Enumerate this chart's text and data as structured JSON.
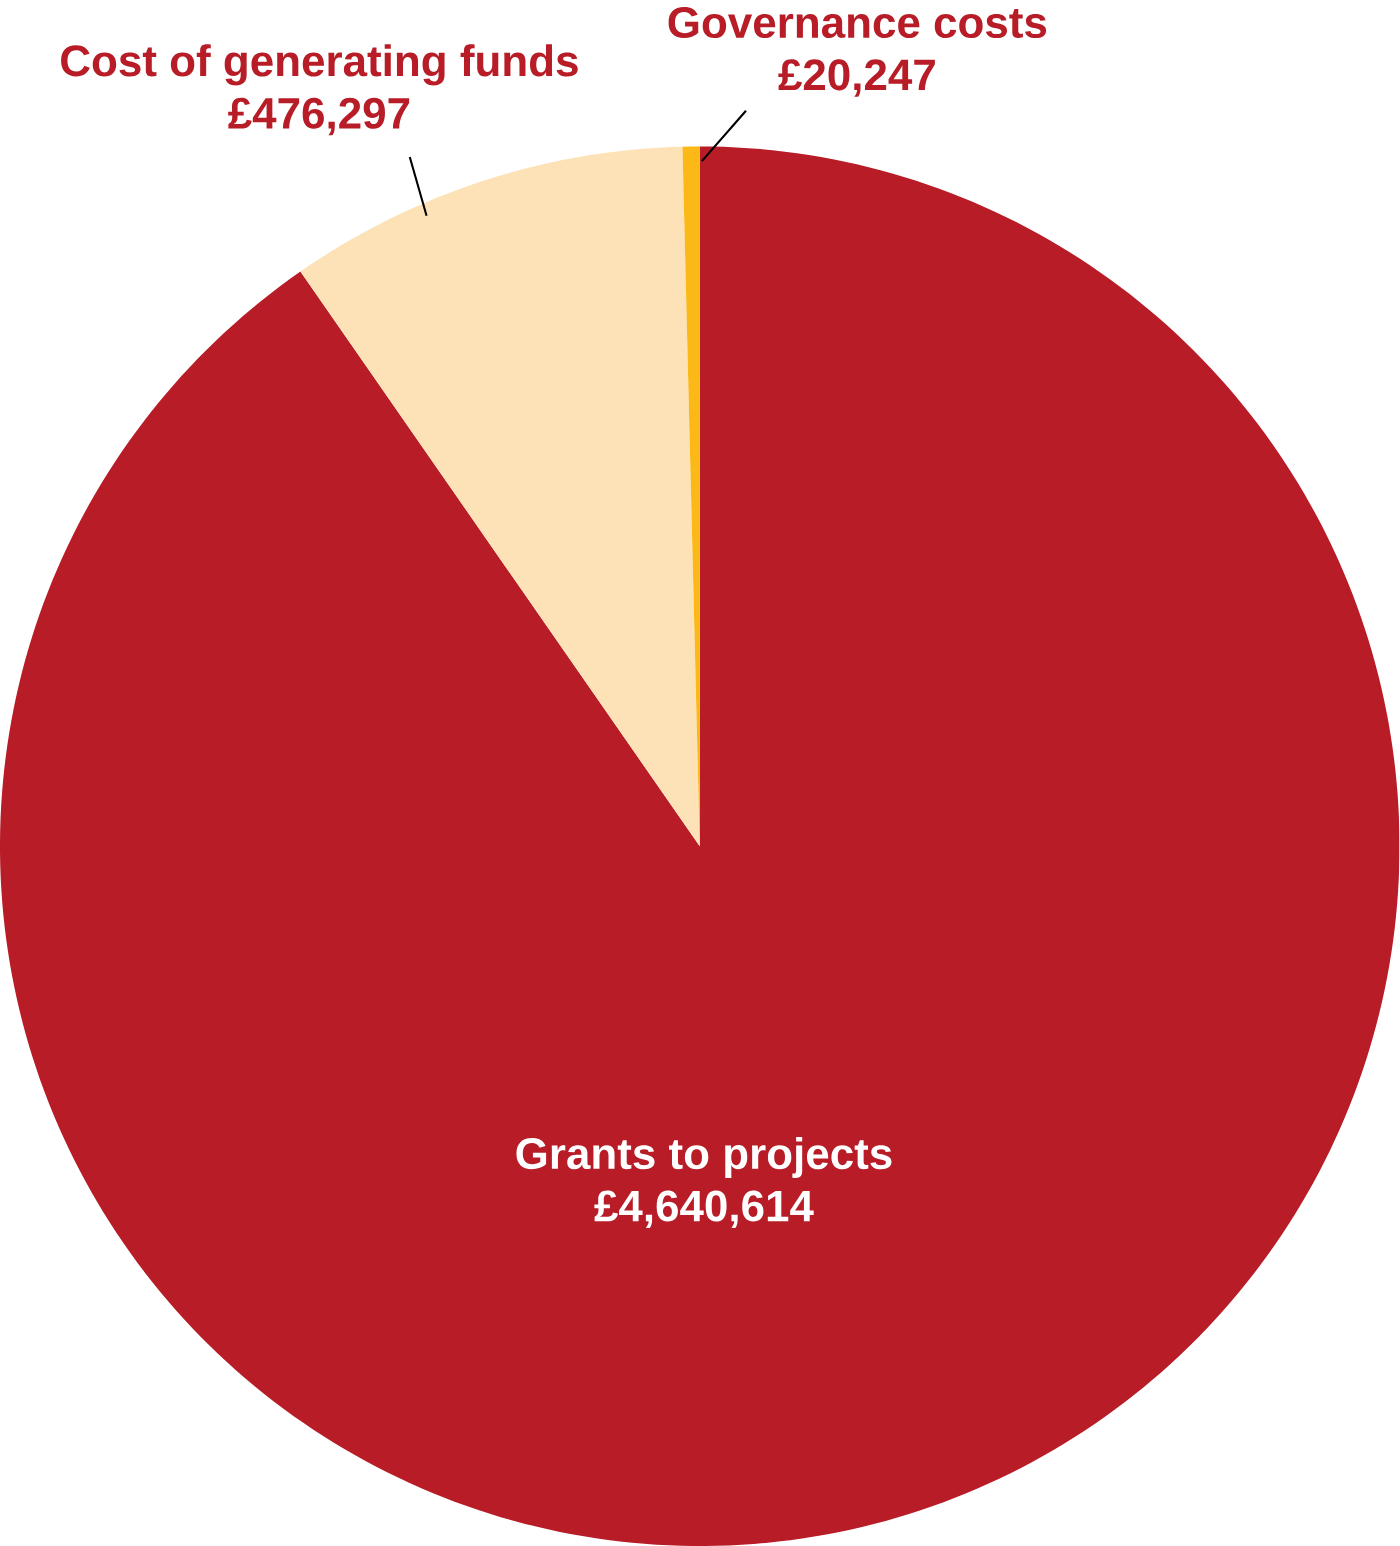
{
  "chart_data": {
    "type": "pie",
    "categories": [
      "Grants to projects",
      "Cost of generating funds",
      "Governance costs"
    ],
    "values": [
      4640614,
      476297,
      20247
    ],
    "value_labels": [
      "£4,640,614",
      "£476,297",
      "£20,247"
    ],
    "colors": [
      "#b71c27",
      "#fde2b8",
      "#fbb817"
    ]
  }
}
